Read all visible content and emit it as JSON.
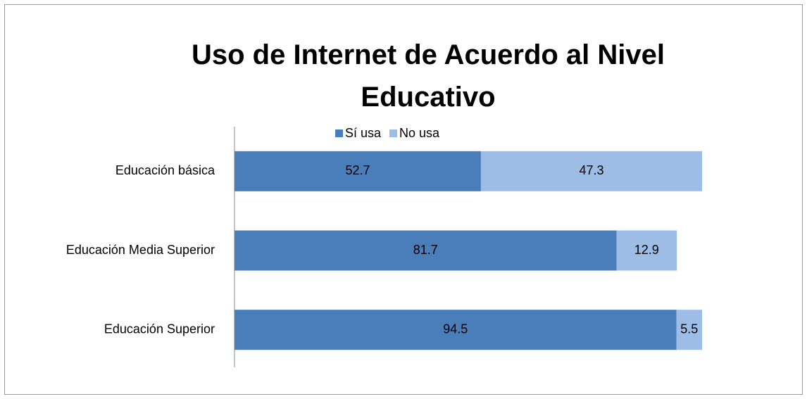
{
  "chart_data": {
    "type": "stacked-barh",
    "title": "Uso de Internet de Acuerdo al Nivel Educativo",
    "categories": [
      "Educación básica",
      "Educación Media Superior",
      "Educación Superior"
    ],
    "series": [
      {
        "name": "Sí usa",
        "color": "#4a7ebb",
        "values": [
          52.7,
          81.7,
          94.5
        ]
      },
      {
        "name": "No usa",
        "color": "#9dbde6",
        "values": [
          47.3,
          12.9,
          5.5
        ]
      }
    ],
    "xlim": [
      0,
      100
    ],
    "legend": "top"
  }
}
